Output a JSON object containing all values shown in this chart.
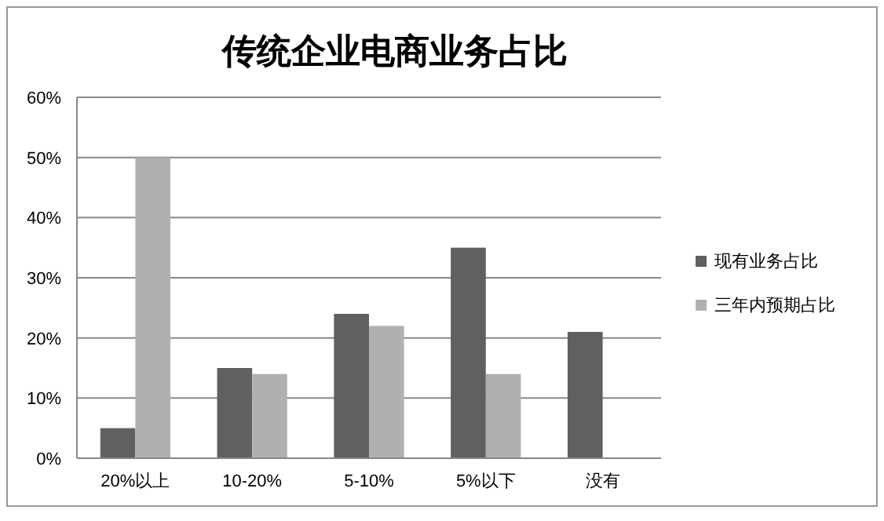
{
  "chart_data": {
    "type": "bar",
    "title": "传统企业电商业务占比",
    "categories": [
      "20%以上",
      "10-20%",
      "5-10%",
      "5%以下",
      "没有"
    ],
    "series": [
      {
        "name": "现有业务占比",
        "color": "#606060",
        "values": [
          5,
          15,
          24,
          35,
          21
        ]
      },
      {
        "name": "三年内预期占比",
        "color": "#b0b0b0",
        "values": [
          50,
          14,
          22,
          14,
          0
        ]
      }
    ],
    "ylim": [
      0,
      60
    ],
    "yticks": [
      {
        "value": 0,
        "label": "0%"
      },
      {
        "value": 10,
        "label": "10%"
      },
      {
        "value": 20,
        "label": "20%"
      },
      {
        "value": 30,
        "label": "30%"
      },
      {
        "value": 40,
        "label": "40%"
      },
      {
        "value": 50,
        "label": "50%"
      },
      {
        "value": 60,
        "label": "60%"
      }
    ],
    "grid": "y",
    "legend": "right"
  }
}
